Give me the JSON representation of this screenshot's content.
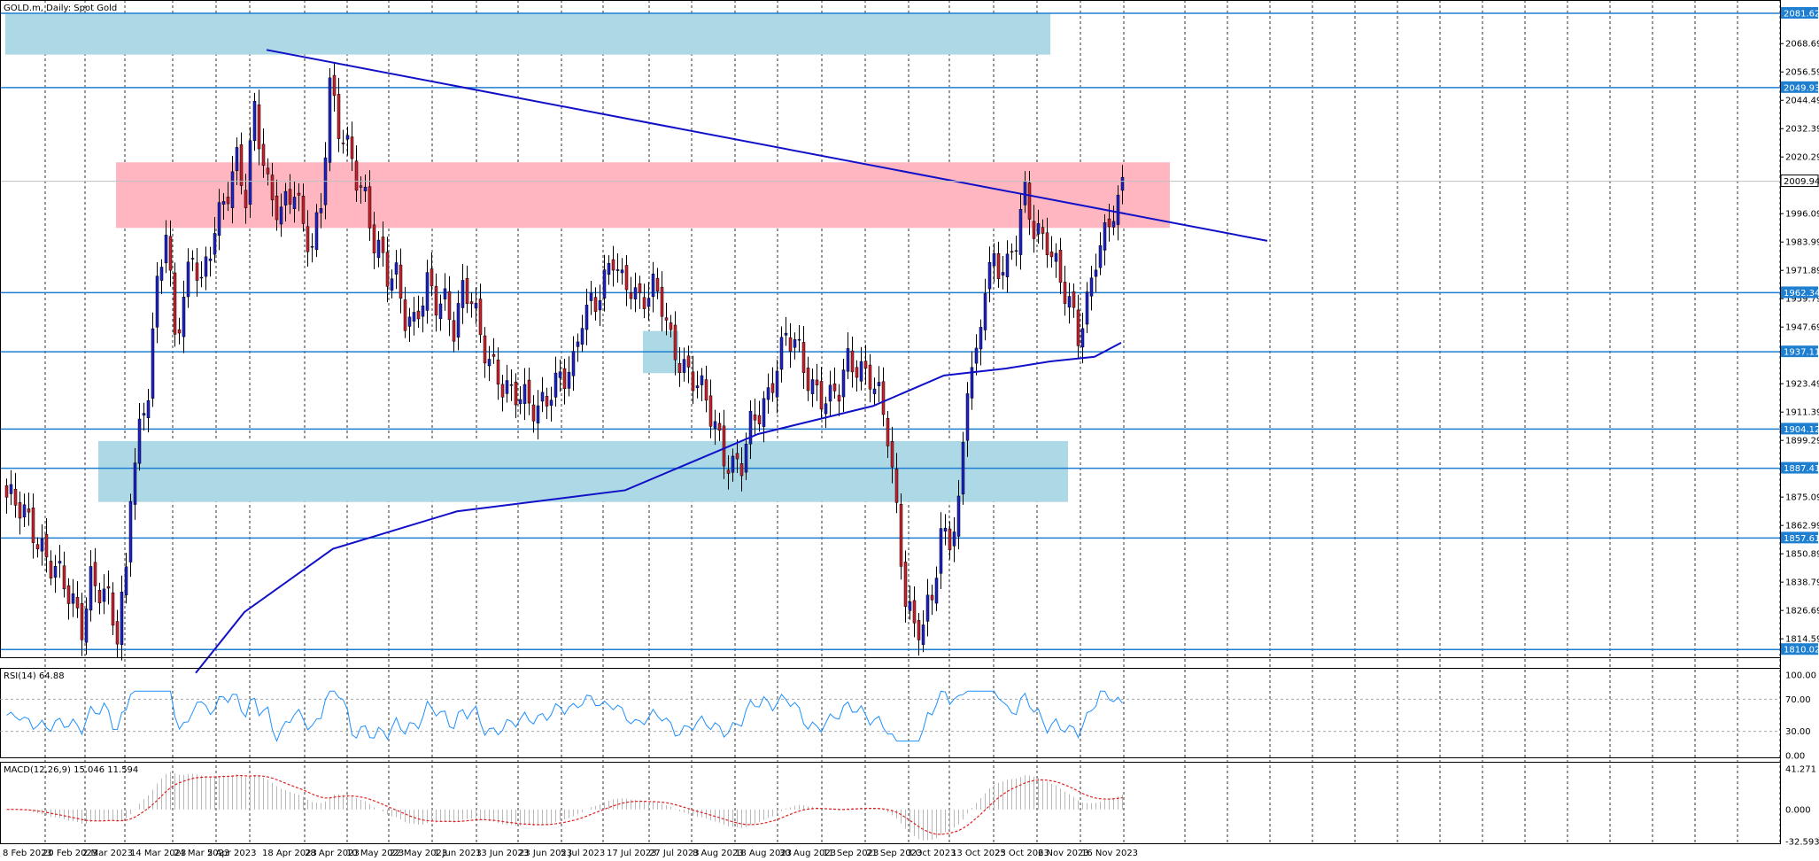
{
  "header": {
    "title": "GOLD.m, Daily:  Spot Gold"
  },
  "indicators": {
    "rsi_label": "RSI(14) 64.88",
    "rsi_ticks": [
      "100.00",
      "70.00",
      "30.00",
      "0.00"
    ],
    "macd_label": "MACD(12,26,9) 15.046 11.594",
    "macd_ticks": [
      "41.271",
      "0.000",
      "-32.593"
    ]
  },
  "colors": {
    "bull": "#1a22c8",
    "bear": "#c8202a",
    "zone_blue": "#add8e6",
    "zone_pink": "#ffb6c1",
    "level_line": "#1e7fd0",
    "trend_line": "#1010c8",
    "ma_line": "#1010c8",
    "rsi_line": "#1e90ff",
    "macd_signal": "#e02020",
    "macd_hist": "#b8b8b8"
  },
  "price_ticks": [
    "2068.69",
    "2056.59",
    "2044.49",
    "2032.39",
    "2020.29",
    "1996.09",
    "1983.99",
    "1971.89",
    "1959.79",
    "1947.69",
    "1923.49",
    "1911.39",
    "1899.29",
    "1875.09",
    "1862.99",
    "1850.89",
    "1838.79",
    "1826.69",
    "1814.59"
  ],
  "price_badges": [
    "2081.62",
    "2049.93",
    "2009.94",
    "1962.34",
    "1937.11",
    "1904.12",
    "1887.41",
    "1857.61",
    "1810.02"
  ],
  "time_labels": [
    "8 Feb 2023",
    "20 Feb 2023",
    "2 Mar 2023",
    "14 Mar 2023",
    "24 Mar 2023",
    "5 Apr 2023",
    "18 Apr 2023",
    "28 Apr 2023",
    "10 May 2023",
    "22 May 2023",
    "1 Jun 2023",
    "13 Jun 2023",
    "23 Jun 2023",
    "5 Jul 2023",
    "17 Jul 2023",
    "27 Jul 2023",
    "8 Aug 2023",
    "18 Aug 2023",
    "30 Aug 2023",
    "11 Sep 2023",
    "21 Sep 2023",
    "3 Oct 2023",
    "13 Oct 2023",
    "25 Oct 2023",
    "6 Nov 2023",
    "16 Nov 2023"
  ],
  "chart_data": {
    "type": "candlestick",
    "symbol": "GOLD.m",
    "timeframe": "Daily",
    "ylim": [
      1805,
      2085
    ],
    "keypoints": [
      [
        0,
        1875
      ],
      [
        6,
        1862
      ],
      [
        14,
        1832
      ],
      [
        17,
        1822
      ],
      [
        19,
        1842
      ],
      [
        23,
        1828
      ],
      [
        25,
        1815
      ],
      [
        27,
        1845
      ],
      [
        28,
        1882
      ],
      [
        30,
        1904
      ],
      [
        32,
        1920
      ],
      [
        34,
        1962
      ],
      [
        36,
        1990
      ],
      [
        38,
        1946
      ],
      [
        42,
        1978
      ],
      [
        44,
        1962
      ],
      [
        47,
        1991
      ],
      [
        49,
        2004
      ],
      [
        52,
        2018
      ],
      [
        54,
        2000
      ],
      [
        56,
        2040
      ],
      [
        59,
        2010
      ],
      [
        62,
        1996
      ],
      [
        65,
        2004
      ],
      [
        67,
        1990
      ],
      [
        69,
        1985
      ],
      [
        71,
        2002
      ],
      [
        73,
        2049
      ],
      [
        75,
        2030
      ],
      [
        78,
        2020
      ],
      [
        81,
        2004
      ],
      [
        83,
        1983
      ],
      [
        86,
        1968
      ],
      [
        88,
        1970
      ],
      [
        90,
        1955
      ],
      [
        92,
        1950
      ],
      [
        95,
        1963
      ],
      [
        97,
        1957
      ],
      [
        99,
        1960
      ],
      [
        101,
        1950
      ],
      [
        103,
        1963
      ],
      [
        105,
        1958
      ],
      [
        107,
        1941
      ],
      [
        110,
        1932
      ],
      [
        114,
        1918
      ],
      [
        118,
        1914
      ],
      [
        120,
        1915
      ],
      [
        123,
        1922
      ],
      [
        126,
        1924
      ],
      [
        128,
        1930
      ],
      [
        130,
        1955
      ],
      [
        132,
        1960
      ],
      [
        133,
        1960
      ],
      [
        135,
        1965
      ],
      [
        137,
        1975
      ],
      [
        139,
        1966
      ],
      [
        141,
        1968
      ],
      [
        143,
        1960
      ],
      [
        146,
        1962
      ],
      [
        148,
        1956
      ],
      [
        150,
        1942
      ],
      [
        152,
        1936
      ],
      [
        154,
        1928
      ],
      [
        156,
        1922
      ],
      [
        158,
        1914
      ],
      [
        160,
        1906
      ],
      [
        162,
        1895
      ],
      [
        164,
        1889
      ],
      [
        166,
        1888
      ],
      [
        168,
        1903
      ],
      [
        170,
        1912
      ],
      [
        172,
        1920
      ],
      [
        174,
        1934
      ],
      [
        176,
        1942
      ],
      [
        178,
        1939
      ],
      [
        180,
        1930
      ],
      [
        182,
        1924
      ],
      [
        184,
        1920
      ],
      [
        186,
        1916
      ],
      [
        188,
        1919
      ],
      [
        190,
        1932
      ],
      [
        192,
        1933
      ],
      [
        195,
        1928
      ],
      [
        197,
        1916
      ],
      [
        199,
        1900
      ],
      [
        201,
        1868
      ],
      [
        203,
        1835
      ],
      [
        205,
        1821
      ],
      [
        207,
        1819
      ],
      [
        209,
        1830
      ],
      [
        211,
        1858
      ],
      [
        213,
        1860
      ],
      [
        215,
        1872
      ],
      [
        217,
        1924
      ],
      [
        219,
        1930
      ],
      [
        221,
        1966
      ],
      [
        223,
        1978
      ],
      [
        226,
        1974
      ],
      [
        228,
        1984
      ],
      [
        230,
        2002
      ],
      [
        232,
        1990
      ],
      [
        235,
        1987
      ],
      [
        238,
        1966
      ],
      [
        240,
        1955
      ],
      [
        242,
        1944
      ],
      [
        244,
        1960
      ],
      [
        246,
        1980
      ],
      [
        248,
        1985
      ],
      [
        250,
        1995
      ],
      [
        251,
        1998
      ],
      [
        252,
        2007
      ]
    ],
    "ma_keypoints": [
      [
        43,
        1800
      ],
      [
        54,
        1826
      ],
      [
        74,
        1853
      ],
      [
        102,
        1869
      ],
      [
        140,
        1878
      ],
      [
        170,
        1902
      ],
      [
        196,
        1914
      ],
      [
        212,
        1927
      ],
      [
        226,
        1930
      ],
      [
        236,
        1933
      ],
      [
        246,
        1935
      ],
      [
        252,
        1941
      ]
    ],
    "levels": [
      2081.62,
      2049.93,
      1962.34,
      1937.11,
      1904.12,
      1887.41,
      1857.61,
      1810.02
    ],
    "current_price": 2009.94,
    "zones": [
      {
        "kind": "supply",
        "from": 0,
        "to": 236,
        "y1": 2081.5,
        "y2": 2064.0
      },
      {
        "kind": "resistance",
        "from": 25,
        "to": 263,
        "y1": 2018.0,
        "y2": 1990.0
      },
      {
        "kind": "demand",
        "from": 21,
        "to": 240,
        "y1": 1899.0,
        "y2": 1873.0
      },
      {
        "kind": "consolidation",
        "from": 144,
        "to": 152,
        "y1": 1946.0,
        "y2": 1928.0
      }
    ],
    "trendline": {
      "x1": 59,
      "y1": 2066.0,
      "x2": 285,
      "y2": 1984.5
    },
    "rsi_range": [
      0,
      100
    ],
    "rsi_levels": [
      30,
      70
    ],
    "rsi_last": 64.88,
    "macd_range": [
      -32.593,
      41.271
    ],
    "macd_main": 15.046,
    "macd_signal": 11.594
  }
}
